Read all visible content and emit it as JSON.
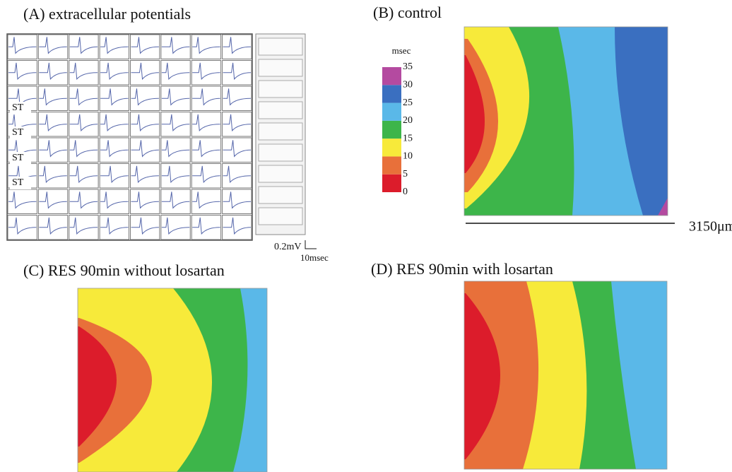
{
  "panels": [
    {
      "label": "(A) extracellular potentials"
    },
    {
      "label": "(B) control"
    },
    {
      "label": "(C) RES  90min without losartan"
    },
    {
      "label": "(D) RES  90min with losartan"
    }
  ],
  "panel_a": {
    "row_labels": [
      "ST",
      "ST",
      "ST",
      "ST"
    ],
    "scale_voltage": "0.2mV",
    "scale_time": "10msec"
  },
  "colorbar": {
    "unit": "msec",
    "ticks": [
      0,
      5,
      10,
      15,
      20,
      25,
      30,
      35
    ],
    "colors": [
      "#dc1c2b",
      "#e8703a",
      "#f7ea3a",
      "#3db54a",
      "#5ab8e8",
      "#3a6fc0",
      "#b44aa0"
    ]
  },
  "scale_bar": "3150μm"
}
